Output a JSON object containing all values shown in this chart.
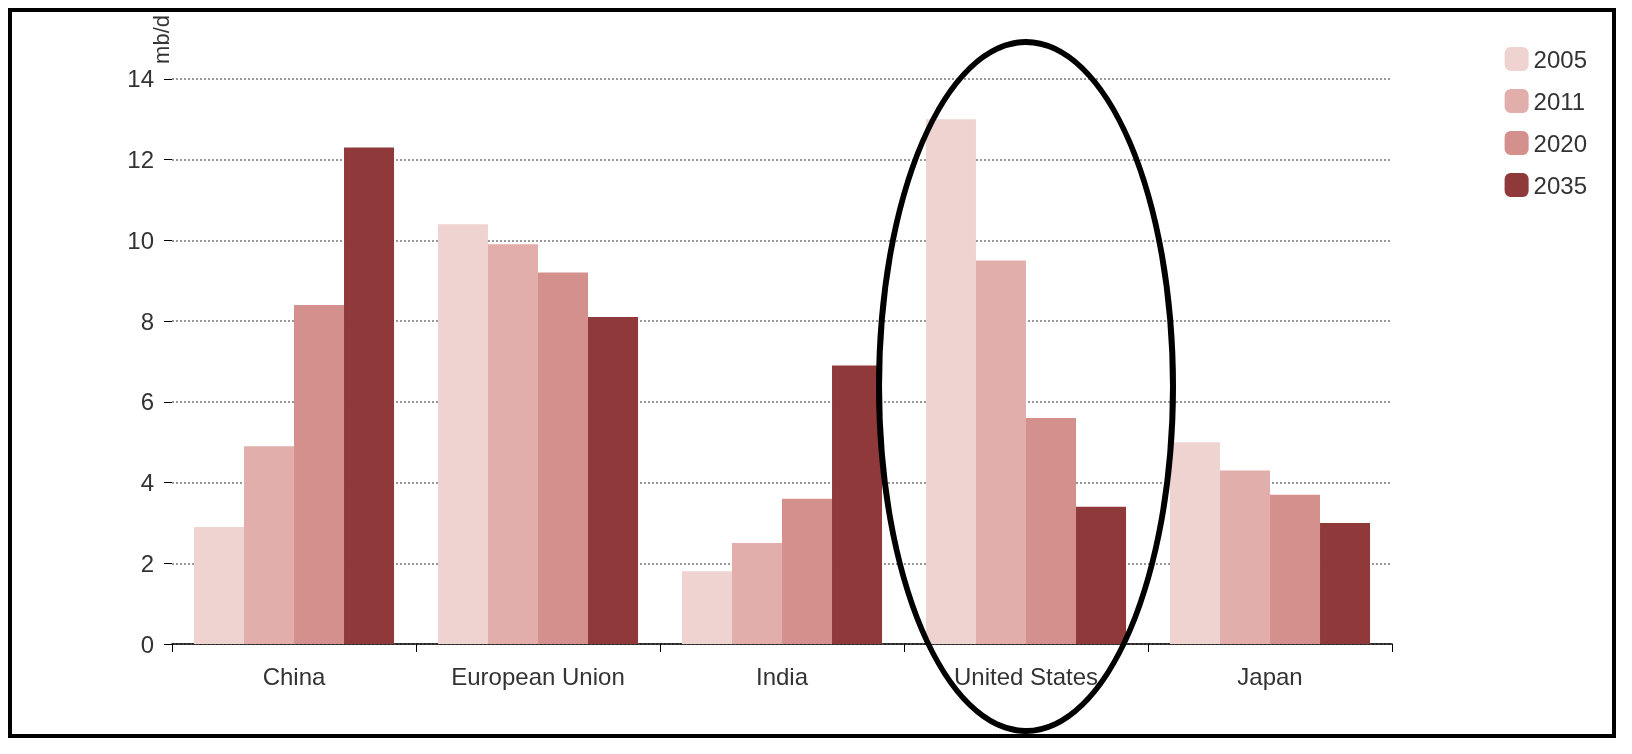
{
  "chart_data": {
    "type": "bar",
    "ylabel": "mb/d",
    "categories": [
      "China",
      "European Union",
      "India",
      "United States",
      "Japan"
    ],
    "series": [
      {
        "name": "2005",
        "color": "#efd3d0",
        "values": [
          2.9,
          10.4,
          1.8,
          13.0,
          5.0
        ]
      },
      {
        "name": "2011",
        "color": "#e2aeab",
        "values": [
          4.9,
          9.9,
          2.5,
          9.5,
          4.3
        ]
      },
      {
        "name": "2020",
        "color": "#d4908d",
        "values": [
          8.4,
          9.2,
          3.6,
          5.6,
          3.7
        ]
      },
      {
        "name": "2035",
        "color": "#8f393b",
        "values": [
          12.3,
          8.1,
          6.9,
          3.4,
          3.0
        ]
      }
    ],
    "ylim": [
      0,
      14
    ],
    "yticks": [
      0,
      2,
      4,
      6,
      8,
      10,
      12,
      14
    ],
    "grid": "y",
    "legend": "right"
  }
}
